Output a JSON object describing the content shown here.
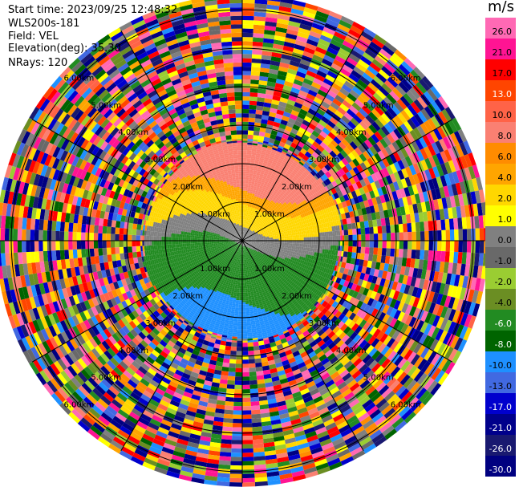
{
  "header": {
    "start_time": "Start time: 2023/09/25 12:48:32",
    "instrument": "WLS200s-181",
    "field": "Field: VEL",
    "elevation": "Elevation(deg): 35.30",
    "nrays": "NRays: 120"
  },
  "colorbar": {
    "unit": "m/s",
    "levels": [
      "26.0",
      "21.0",
      "17.0",
      "13.0",
      "10.0",
      "8.0",
      "6.0",
      "4.0",
      "2.0",
      "1.0",
      "0.0",
      "-1.0",
      "-2.0",
      "-4.0",
      "-6.0",
      "-8.0",
      "-10.0",
      "-13.0",
      "-17.0",
      "-21.0",
      "-26.0",
      "-30.0"
    ],
    "colors": [
      "#ff69b4",
      "#ff1493",
      "#ff0000",
      "#ff4500",
      "#ff6347",
      "#fa8072",
      "#ff8c00",
      "#ffa500",
      "#ffd700",
      "#ffff00",
      "#808080",
      "#696969",
      "#9acd32",
      "#6b8e23",
      "#228b22",
      "#006400",
      "#1e90ff",
      "#4169e1",
      "#0000cd",
      "#00008b",
      "#191970",
      "#000080"
    ]
  },
  "chart_data": {
    "type": "heatmap",
    "subtype": "polar PPI scan",
    "field": "VEL",
    "units": "m/s",
    "elevation_deg": 35.3,
    "n_rays": 120,
    "range_rings_km": [
      1.0,
      2.0,
      3.0,
      4.0,
      5.0,
      6.0
    ],
    "range_labels": [
      "1.00km",
      "2.00km",
      "3.00km",
      "4.00km",
      "5.00km",
      "6.00km"
    ],
    "max_range_km": 6.3,
    "colorbar_range": [
      -30.0,
      26.0
    ],
    "grid": true,
    "legend": "right",
    "inner_pattern": {
      "structure_range_km": [
        0,
        2.6
      ],
      "north": {
        "velocity_ms": 8.0
      },
      "north_mid": {
        "velocity_ms": 4.0
      },
      "center_band": {
        "velocity_ms": 2.0
      },
      "near_zero_band": {
        "velocity_ms": 0.0
      },
      "south": {
        "velocity_ms": -6.0
      },
      "far_south": {
        "velocity_ms": -10.0
      }
    },
    "outer_pattern": "noise (random velocities across full colour scale)"
  }
}
